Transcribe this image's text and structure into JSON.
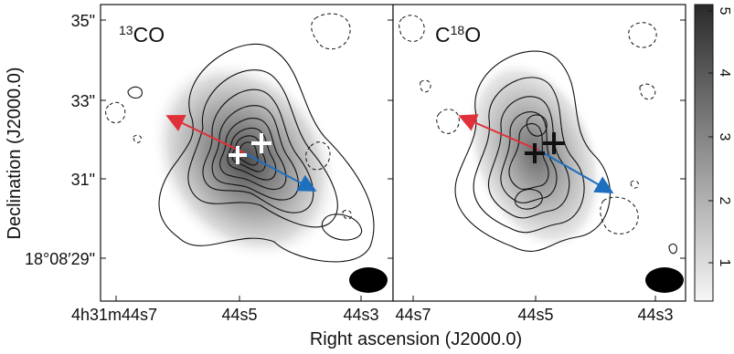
{
  "panels": [
    {
      "id": "13co",
      "label_sup": "13",
      "label_main": "CO",
      "x_ticks": [
        "4h31m44s7",
        "44s5",
        "44s3"
      ],
      "markers_color": "white"
    },
    {
      "id": "c18o",
      "label_main_pre": "C",
      "label_sup": "18",
      "label_main_post": "O",
      "x_ticks": [
        "44s7",
        "44s5",
        "44s3"
      ],
      "markers_color": "black"
    }
  ],
  "y_axis": {
    "label": "Declination (J2000.0)",
    "ticks": [
      "35\"",
      "33\"",
      "31\"",
      "18°08′29\""
    ]
  },
  "x_axis": {
    "label": "Right ascension (J2000.0)"
  },
  "colorbar": {
    "ticks": [
      "5",
      "4",
      "3",
      "2",
      "1"
    ],
    "gradient_top": "#2a2a2a",
    "gradient_bottom": "#f6f6f6"
  },
  "colors": {
    "arrow_red": "#e0303a",
    "arrow_blue": "#1f6fbf",
    "contour": "#111111",
    "beam": "#000000"
  }
}
